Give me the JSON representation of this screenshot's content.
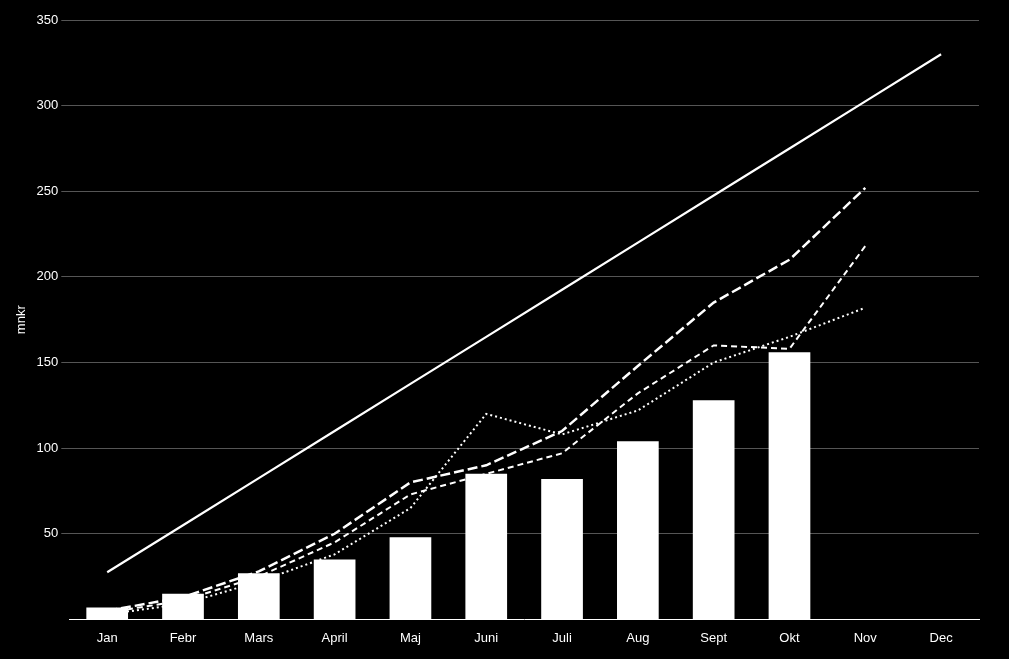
{
  "chart_data": {
    "type": "bar",
    "ylabel": "mnkr",
    "categories": [
      "Jan",
      "Febr",
      "Mars",
      "April",
      "Maj",
      "Juni",
      "Juli",
      "Aug",
      "Sept",
      "Okt",
      "Nov",
      "Dec"
    ],
    "series": [
      {
        "type": "bar",
        "color": "#ffffff",
        "values": [
          7,
          15,
          27,
          35,
          48,
          85,
          82,
          104,
          128,
          156,
          null,
          null
        ]
      },
      {
        "type": "line",
        "color": "#ffffff",
        "line_style": "solid",
        "marker": "none",
        "values": [
          27.5,
          55,
          82.5,
          110,
          137.5,
          165,
          192.5,
          220,
          247.5,
          275,
          302.5,
          330
        ]
      },
      {
        "type": "line",
        "color": "#ffffff",
        "line_style": "long_dashed",
        "marker": "none",
        "values": [
          5,
          13,
          28,
          50,
          80,
          90,
          110,
          148,
          185,
          210,
          252,
          null
        ]
      },
      {
        "type": "line",
        "color": "#ffffff",
        "line_style": "dashed",
        "marker": "none",
        "values": [
          4,
          11,
          25,
          45,
          73,
          85,
          97,
          132,
          160,
          158,
          218,
          null
        ]
      },
      {
        "type": "line",
        "color": "#ffffff",
        "line_style": "dotted",
        "marker": "none",
        "values": [
          3,
          9,
          22,
          38,
          65,
          120,
          108,
          122,
          150,
          165,
          182,
          null
        ]
      }
    ],
    "ylim": [
      0,
      350
    ],
    "yticks": [
      50,
      100,
      150,
      200,
      250,
      300,
      350
    ],
    "grid": true
  }
}
